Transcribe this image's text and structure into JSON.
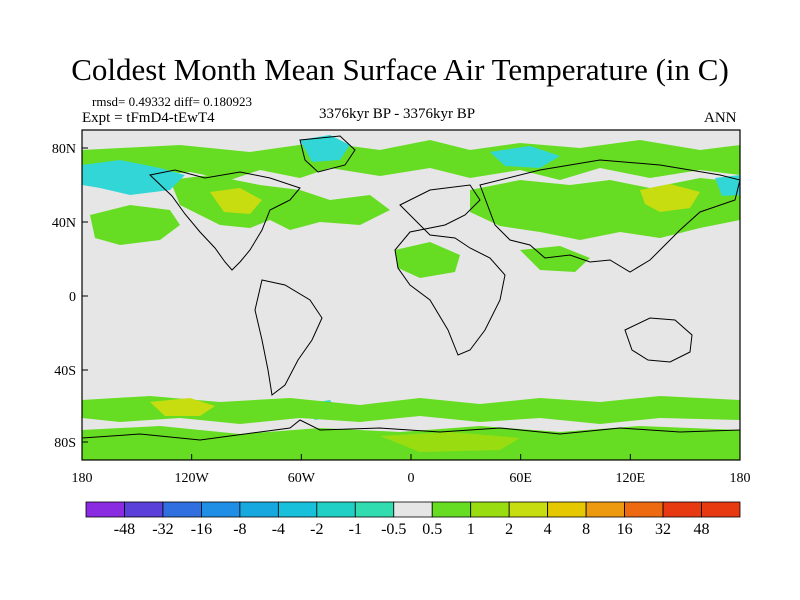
{
  "title": "Coldest Month Mean Surface Air Temperature (in C)",
  "stats": "rmsd= 0.49332  diff= 0.180923",
  "experiment": "Expt = tFmD4-tEwT4",
  "period": "3376kyr BP - 3376kyr BP",
  "season": "ANN",
  "lat_ticks": [
    "80N",
    "40N",
    "0",
    "40S",
    "80S"
  ],
  "lon_ticks": [
    "180",
    "120W",
    "60W",
    "0",
    "60E",
    "120E",
    "180"
  ],
  "colorbar": {
    "labels": [
      "-48",
      "-32",
      "-16",
      "-8",
      "-4",
      "-2",
      "-1",
      "-0.5",
      "0.5",
      "1",
      "2",
      "4",
      "8",
      "16",
      "32",
      "48"
    ],
    "colors": [
      "#8a2be2",
      "#5a3fd8",
      "#2f6fe0",
      "#1f8fe6",
      "#18a8e0",
      "#18c0dc",
      "#20d0c4",
      "#30dcb0",
      "#e6e6e6",
      "#66dd22",
      "#99dd11",
      "#c8dd10",
      "#e6c800",
      "#ee9a10",
      "#ee6a10",
      "#e83a10"
    ]
  },
  "regions": {
    "background": "#e6e6e6",
    "cyan": "#33d6d6",
    "green": "#66dd22",
    "lime": "#99dd11",
    "yellow": "#c8dd10"
  }
}
